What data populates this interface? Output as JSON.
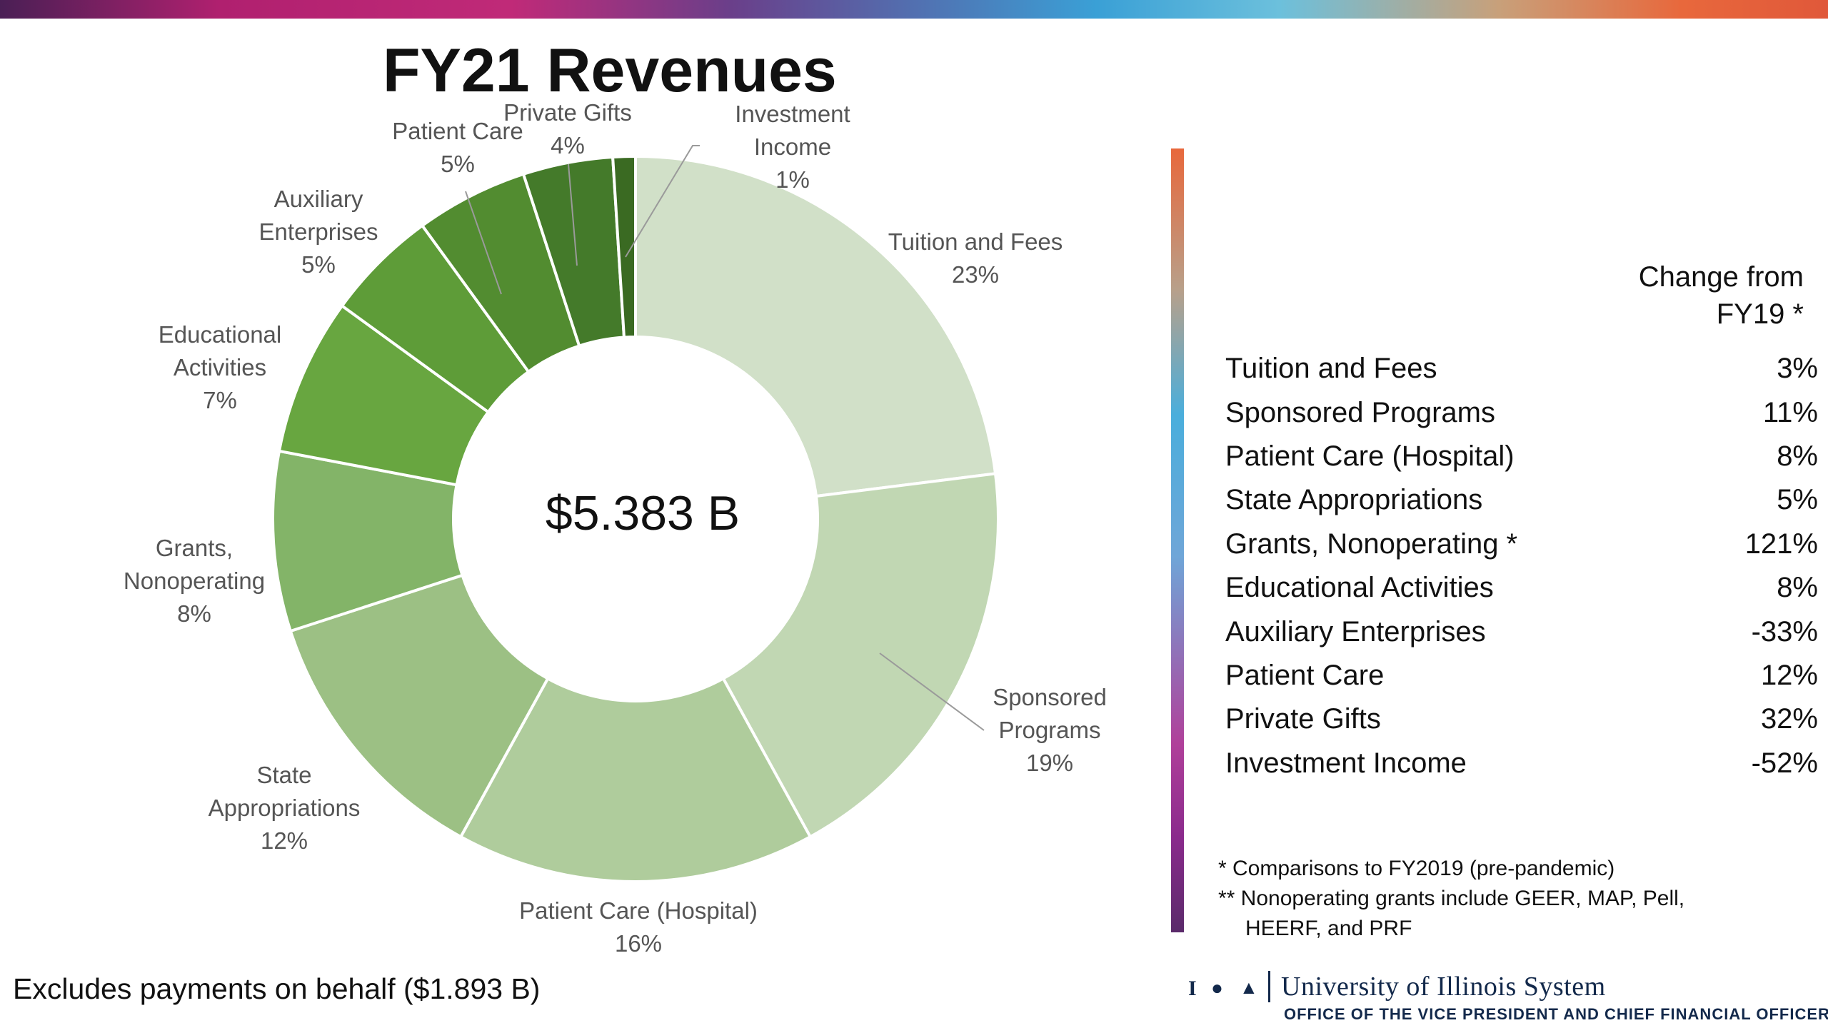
{
  "chart_data": {
    "type": "pie",
    "title": "FY21 Revenues",
    "center_label": "$5.383 B",
    "slices": [
      {
        "name": "Tuition and Fees",
        "value": 23,
        "label": "23%",
        "color": "#d1e0c8"
      },
      {
        "name": "Sponsored Programs",
        "value": 19,
        "label": "19%",
        "color": "#c1d7b3"
      },
      {
        "name": "Patient Care (Hospital)",
        "value": 16,
        "label": "16%",
        "color": "#afcc9c"
      },
      {
        "name": "State Appropriations",
        "value": 12,
        "label": "12%",
        "color": "#9cc084"
      },
      {
        "name": "Grants, Nonoperating",
        "value": 8,
        "label": "8%",
        "color": "#83b468"
      },
      {
        "name": "Educational Activities",
        "value": 7,
        "label": "7%",
        "color": "#68a640"
      },
      {
        "name": "Auxiliary Enterprises",
        "value": 5,
        "label": "5%",
        "color": "#5e9c38"
      },
      {
        "name": "Patient Care",
        "value": 5,
        "label": "5%",
        "color": "#528c30"
      },
      {
        "name": "Private Gifts",
        "value": 4,
        "label": "4%",
        "color": "#447a2a"
      },
      {
        "name": "Investment Income",
        "value": 1,
        "label": "1%",
        "color": "#3a6a22"
      }
    ]
  },
  "labels": {
    "tuition": {
      "line1": "Tuition and Fees",
      "pct": "23%"
    },
    "sponsored": {
      "line1": "Sponsored",
      "line2": "Programs",
      "pct": "19%"
    },
    "hospital": {
      "line1": "Patient Care (Hospital)",
      "pct": "16%"
    },
    "state": {
      "line1": "State",
      "line2": "Appropriations",
      "pct": "12%"
    },
    "grants": {
      "line1": "Grants,",
      "line2": "Nonoperating",
      "pct": "8%"
    },
    "educational": {
      "line1": "Educational",
      "line2": "Activities",
      "pct": "7%"
    },
    "auxiliary": {
      "line1": "Auxiliary",
      "line2": "Enterprises",
      "pct": "5%"
    },
    "patient_care": {
      "line1": "Patient Care",
      "pct": "5%"
    },
    "private_gifts": {
      "line1": "Private Gifts",
      "pct": "4%"
    },
    "investment": {
      "line1": "Investment",
      "line2": "Income",
      "pct": "1%"
    }
  },
  "footnote_left": "Excludes payments on behalf ($1.893 B)",
  "change_table": {
    "header_line1": "Change from",
    "header_line2": "FY19 *",
    "rows": [
      {
        "name": "Tuition and Fees",
        "change": "3%"
      },
      {
        "name": "Sponsored Programs",
        "change": "11%"
      },
      {
        "name": "Patient Care (Hospital)",
        "change": "8%"
      },
      {
        "name": "State Appropriations",
        "change": "5%"
      },
      {
        "name": "Grants, Nonoperating *",
        "change": "121%"
      },
      {
        "name": "Educational Activities",
        "change": "8%"
      },
      {
        "name": "Auxiliary Enterprises",
        "change": "-33%"
      },
      {
        "name": "Patient Care",
        "change": "12%"
      },
      {
        "name": "Private Gifts",
        "change": "32%"
      },
      {
        "name": "Investment Income",
        "change": "-52%"
      }
    ]
  },
  "notes": {
    "note1": "*  Comparisons to FY2019 (pre-pandemic)",
    "note2": "** Nonoperating grants include GEER, MAP, Pell,",
    "note3": "HEERF, and PRF"
  },
  "logo": {
    "name": "University of Illinois System",
    "office": "OFFICE OF THE VICE PRESIDENT AND CHIEF FINANCIAL OFFICER"
  }
}
